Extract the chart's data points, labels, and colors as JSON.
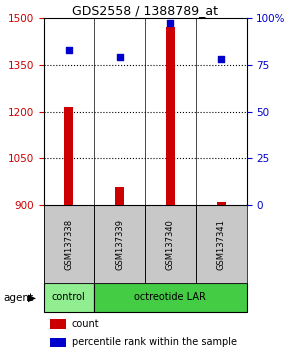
{
  "title": "GDS2558 / 1388789_at",
  "samples": [
    "GSM137338",
    "GSM137339",
    "GSM137340",
    "GSM137341"
  ],
  "counts": [
    1215,
    960,
    1470,
    910
  ],
  "percentiles": [
    83,
    79,
    97,
    78
  ],
  "ylim_left": [
    900,
    1500
  ],
  "ylim_right": [
    0,
    100
  ],
  "yticks_left": [
    900,
    1050,
    1200,
    1350,
    1500
  ],
  "yticks_right": [
    0,
    25,
    50,
    75,
    100
  ],
  "ytick_labels_right": [
    "0",
    "25",
    "50",
    "75",
    "100%"
  ],
  "bar_color": "#cc0000",
  "dot_color": "#0000cc",
  "bar_width": 0.18,
  "legend_items": [
    {
      "label": "count",
      "color": "#cc0000"
    },
    {
      "label": "percentile rank within the sample",
      "color": "#0000cc"
    }
  ],
  "left_axis_color": "#cc0000",
  "right_axis_color": "#0000cc",
  "sample_box_color": "#c8c8c8",
  "control_color": "#90ee90",
  "octreotide_color": "#44cc44",
  "grid_dotted_vals": [
    1050,
    1200,
    1350
  ]
}
